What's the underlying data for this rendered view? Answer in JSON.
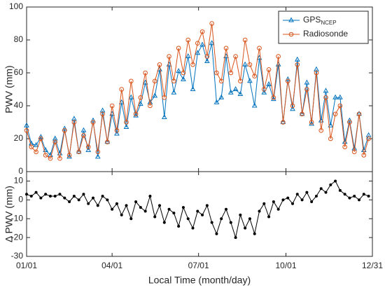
{
  "chart_data": [
    {
      "type": "line",
      "ylabel": "PWV (mm)",
      "x": [
        1,
        6,
        11,
        16,
        21,
        26,
        31,
        36,
        41,
        46,
        51,
        56,
        61,
        66,
        71,
        76,
        81,
        86,
        91,
        96,
        101,
        106,
        111,
        116,
        121,
        126,
        131,
        136,
        141,
        146,
        151,
        156,
        161,
        166,
        171,
        176,
        181,
        186,
        191,
        196,
        201,
        206,
        211,
        216,
        221,
        226,
        231,
        236,
        241,
        246,
        251,
        256,
        261,
        266,
        271,
        276,
        281,
        286,
        291,
        296,
        301,
        306,
        311,
        316,
        321,
        326,
        331,
        336,
        341,
        346,
        351,
        356,
        361
      ],
      "xlim": [
        1,
        365
      ],
      "xticks": [
        1,
        91,
        182,
        274,
        365
      ],
      "ylim": [
        0,
        100
      ],
      "yticks": [
        0,
        20,
        40,
        60,
        80,
        100
      ],
      "legend": "upper right",
      "series": [
        {
          "name": "GPS",
          "subscript": "NCEP",
          "color": "#0072bd",
          "marker": "triangle",
          "values": [
            28,
            17,
            16,
            21,
            13,
            10,
            20,
            11,
            26,
            9,
            32,
            12,
            25,
            13,
            31,
            9,
            37,
            18,
            35,
            23,
            42,
            27,
            45,
            34,
            41,
            54,
            42,
            46,
            62,
            33,
            65,
            48,
            61,
            56,
            70,
            50,
            72,
            77,
            67,
            78,
            42,
            45,
            70,
            48,
            50,
            47,
            65,
            55,
            40,
            69,
            48,
            53,
            44,
            65,
            30,
            56,
            38,
            68,
            35,
            54,
            29,
            62,
            31,
            49,
            28,
            45,
            45,
            18,
            31,
            14,
            35,
            13,
            22
          ]
        },
        {
          "name": "Radiosonde",
          "color": "#d95319",
          "marker": "circle",
          "values": [
            25,
            15,
            12,
            20,
            10,
            8,
            18,
            8,
            25,
            10,
            30,
            12,
            22,
            15,
            30,
            12,
            35,
            18,
            40,
            25,
            50,
            30,
            55,
            35,
            45,
            60,
            40,
            55,
            65,
            45,
            70,
            55,
            75,
            60,
            80,
            65,
            78,
            85,
            70,
            90,
            60,
            55,
            75,
            60,
            70,
            55,
            80,
            65,
            58,
            75,
            50,
            62,
            45,
            70,
            30,
            55,
            40,
            65,
            35,
            50,
            30,
            60,
            25,
            45,
            20,
            35,
            40,
            15,
            30,
            12,
            35,
            10,
            20
          ]
        }
      ]
    },
    {
      "type": "line",
      "ylabel": "Δ PWV (mm)",
      "xlabel": "Local Time (month/day)",
      "x": [
        1,
        6,
        11,
        16,
        21,
        26,
        31,
        36,
        41,
        46,
        51,
        56,
        61,
        66,
        71,
        76,
        81,
        86,
        91,
        96,
        101,
        106,
        111,
        116,
        121,
        126,
        131,
        136,
        141,
        146,
        151,
        156,
        161,
        166,
        171,
        176,
        181,
        186,
        191,
        196,
        201,
        206,
        211,
        216,
        221,
        226,
        231,
        236,
        241,
        246,
        251,
        256,
        261,
        266,
        271,
        276,
        281,
        286,
        291,
        296,
        301,
        306,
        311,
        316,
        321,
        326,
        331,
        336,
        341,
        346,
        351,
        356,
        361
      ],
      "xlim": [
        1,
        365
      ],
      "xticks": [
        {
          "value": 1,
          "label": "01/01"
        },
        {
          "value": 91,
          "label": "04/01"
        },
        {
          "value": 182,
          "label": "07/01"
        },
        {
          "value": 274,
          "label": "10/01"
        },
        {
          "value": 365,
          "label": "12/31"
        }
      ],
      "ylim": [
        -30,
        15
      ],
      "yticks": [
        -30,
        -20,
        -10,
        0,
        10
      ],
      "series": [
        {
          "color": "#000000",
          "marker": "dot",
          "values": [
            3,
            2,
            4,
            1,
            3,
            2,
            2,
            3,
            1,
            -1,
            2,
            0,
            3,
            -2,
            1,
            -3,
            2,
            0,
            -5,
            -2,
            -8,
            -3,
            -10,
            -1,
            -4,
            -6,
            2,
            -9,
            -3,
            -12,
            -5,
            -7,
            -14,
            -4,
            -10,
            -15,
            -6,
            -8,
            -3,
            -12,
            -18,
            -10,
            -5,
            -12,
            -20,
            -8,
            -15,
            -10,
            -18,
            -6,
            -2,
            -9,
            -1,
            -5,
            0,
            1,
            -2,
            3,
            0,
            4,
            -1,
            2,
            6,
            4,
            8,
            10,
            5,
            3,
            1,
            2,
            0,
            3,
            2
          ]
        }
      ]
    }
  ]
}
